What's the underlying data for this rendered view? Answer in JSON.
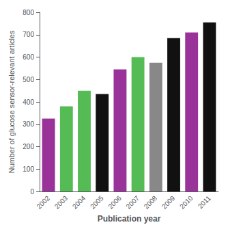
{
  "chart_data": {
    "type": "bar",
    "xlabel": "Publication year",
    "ylabel": "Number of glucose sensor-relevant articles",
    "categories": [
      "2002",
      "2003",
      "2004",
      "2005",
      "2006",
      "2007",
      "2008",
      "2009",
      "2010",
      "2011"
    ],
    "values": [
      325,
      380,
      450,
      435,
      545,
      600,
      575,
      685,
      710,
      755
    ],
    "colors": [
      "#993399",
      "#55bb55",
      "#55bb55",
      "#111111",
      "#993399",
      "#55bb55",
      "#888888",
      "#111111",
      "#993399",
      "#111111"
    ],
    "ylim": [
      0,
      800
    ],
    "yticks": [
      0,
      100,
      200,
      300,
      400,
      500,
      600,
      700,
      800
    ],
    "grid": false
  }
}
